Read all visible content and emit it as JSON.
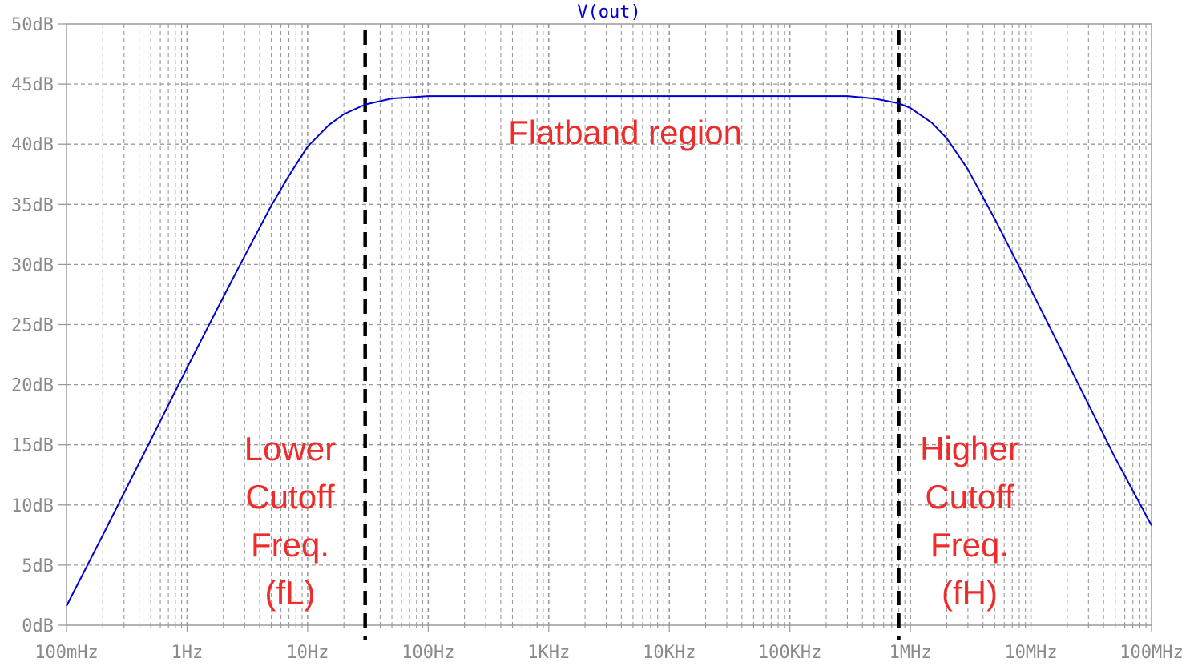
{
  "chart_data": {
    "type": "line",
    "title": "V(out)",
    "xlabel": "",
    "ylabel": "",
    "xscale": "log",
    "xlim": [
      0.1,
      100000000
    ],
    "ylim": [
      0,
      50
    ],
    "grid": true,
    "legend": "none",
    "x_ticks": [
      {
        "value": 0.1,
        "label": "100mHz"
      },
      {
        "value": 1,
        "label": "1Hz"
      },
      {
        "value": 10,
        "label": "10Hz"
      },
      {
        "value": 100,
        "label": "100Hz"
      },
      {
        "value": 1000,
        "label": "1KHz"
      },
      {
        "value": 10000,
        "label": "10KHz"
      },
      {
        "value": 100000,
        "label": "100KHz"
      },
      {
        "value": 1000000,
        "label": "1MHz"
      },
      {
        "value": 10000000,
        "label": "10MHz"
      },
      {
        "value": 100000000,
        "label": "100MHz"
      }
    ],
    "y_ticks": [
      {
        "value": 0,
        "label": "0dB"
      },
      {
        "value": 5,
        "label": "5dB"
      },
      {
        "value": 10,
        "label": "10dB"
      },
      {
        "value": 15,
        "label": "15dB"
      },
      {
        "value": 20,
        "label": "20dB"
      },
      {
        "value": 25,
        "label": "25dB"
      },
      {
        "value": 30,
        "label": "30dB"
      },
      {
        "value": 35,
        "label": "35dB"
      },
      {
        "value": 40,
        "label": "40dB"
      },
      {
        "value": 45,
        "label": "45dB"
      },
      {
        "value": 50,
        "label": "50dB"
      }
    ],
    "series": [
      {
        "name": "V(out)",
        "color": "#0000cc",
        "x": [
          0.1,
          0.2,
          0.5,
          1,
          2,
          3,
          5,
          7,
          10,
          15,
          20,
          30,
          50,
          100,
          300,
          1000,
          10000,
          100000,
          300000,
          500000,
          800000,
          1000000,
          1500000,
          2000000,
          3000000,
          5000000,
          10000000,
          20000000,
          50000000,
          100000000
        ],
        "y": [
          1.6,
          7.5,
          15.4,
          21.4,
          27.3,
          30.7,
          34.9,
          37.4,
          39.8,
          41.6,
          42.5,
          43.3,
          43.8,
          44.0,
          44.0,
          44.0,
          44.0,
          44.0,
          44.0,
          43.8,
          43.4,
          43.0,
          41.8,
          40.5,
          37.9,
          33.8,
          27.9,
          21.9,
          13.9,
          8.3
        ]
      }
    ],
    "markers": [
      {
        "label": "fL",
        "x": 30,
        "color": "#000000",
        "style": "dashed"
      },
      {
        "label": "fH",
        "x": 800000,
        "color": "#000000",
        "style": "dashed"
      }
    ],
    "annotations": [
      {
        "key": "flatband",
        "lines": [
          "Flatband region"
        ],
        "color": "#ee2c2c"
      },
      {
        "key": "lower",
        "lines": [
          "Lower",
          "Cutoff",
          "Freq.",
          "(fL)"
        ],
        "color": "#ee2c2c"
      },
      {
        "key": "higher",
        "lines": [
          "Higher",
          "Cutoff",
          "Freq.",
          "(fH)"
        ],
        "color": "#ee2c2c"
      }
    ]
  }
}
